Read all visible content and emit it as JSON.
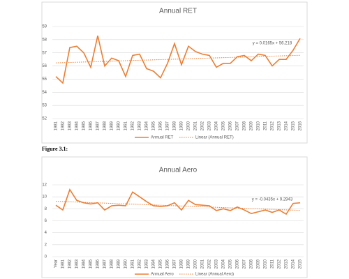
{
  "chart_data": [
    {
      "type": "line",
      "title": "Annual RET",
      "categories": [
        "1981",
        "1982",
        "1983",
        "1984",
        "1985",
        "1986",
        "1987",
        "1988",
        "1989",
        "1990",
        "1991",
        "1992",
        "1993",
        "1994",
        "1995",
        "1996",
        "1997",
        "1998",
        "1999",
        "2000",
        "2001",
        "2002",
        "2003",
        "2004",
        "2005",
        "2006",
        "2007",
        "2008",
        "2009",
        "2010",
        "2011",
        "2012",
        "2013",
        "2014",
        "2015",
        "2016"
      ],
      "series": [
        {
          "name": "Annual RET",
          "color": "#ED7D31",
          "values": [
            55.2,
            54.7,
            57.4,
            57.5,
            57.0,
            55.9,
            58.3,
            56.0,
            56.6,
            56.4,
            55.2,
            56.8,
            56.9,
            55.8,
            55.6,
            55.1,
            56.2,
            57.7,
            56.1,
            57.5,
            57.1,
            56.9,
            56.8,
            55.9,
            56.2,
            56.2,
            56.7,
            56.8,
            56.4,
            56.9,
            56.8,
            56.0,
            56.5,
            56.5,
            57.2,
            58.1
          ]
        }
      ],
      "trendline": {
        "name": "Linear (Annual RET)",
        "slope": 0.0165,
        "intercept": 56.218,
        "label": "y = 0.0165x + 56.218"
      },
      "ylim": [
        52,
        59
      ],
      "yticks": [
        52,
        53,
        54,
        55,
        56,
        57,
        58,
        59
      ],
      "grid": true
    },
    {
      "type": "line",
      "title": "Annual Aero",
      "categories": [
        "Year",
        "1981",
        "1982",
        "1983",
        "1984",
        "1985",
        "1986",
        "1987",
        "1988",
        "1989",
        "1990",
        "1991",
        "1992",
        "1993",
        "1994",
        "1995",
        "1996",
        "1997",
        "1998",
        "1999",
        "2000",
        "2001",
        "2002",
        "2003",
        "2004",
        "2005",
        "2006",
        "2007",
        "2008",
        "2009",
        "2010",
        "2011",
        "2012",
        "2013",
        "2014",
        "2015"
      ],
      "series": [
        {
          "name": "Annual Aero",
          "color": "#ED7D31",
          "values": [
            8.6,
            7.8,
            11.2,
            9.4,
            9.0,
            8.8,
            9.0,
            7.8,
            8.5,
            8.6,
            8.5,
            10.8,
            10.0,
            9.2,
            8.5,
            8.4,
            8.5,
            9.0,
            7.8,
            9.4,
            8.7,
            8.6,
            8.5,
            7.7,
            8.0,
            7.7,
            8.3,
            7.8,
            7.2,
            7.5,
            7.8,
            7.4,
            7.8,
            7.1,
            8.9,
            9.0
          ]
        }
      ],
      "trendline": {
        "name": "Linear (Annual Aero)",
        "slope": -0.0435,
        "intercept": 9.2943,
        "label": "y = -0.0435x + 9.2943"
      },
      "ylim": [
        0,
        12
      ],
      "yticks": [
        0,
        2,
        4,
        6,
        8,
        10,
        12
      ],
      "grid": true
    }
  ],
  "caption": "Figure 3.1:"
}
